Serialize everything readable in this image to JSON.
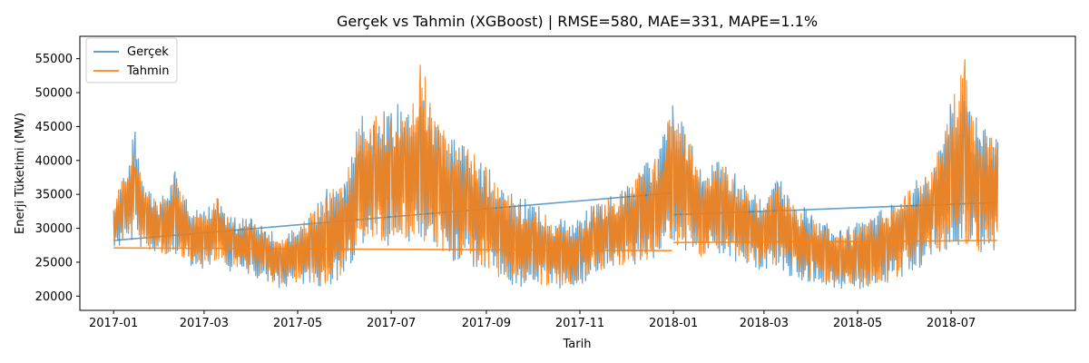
{
  "chart_data": {
    "type": "line",
    "title": "Gerçek vs Tahmin (XGBoost) | RMSE=580, MAE=331, MAPE=1.1%",
    "xlabel": "Tarih",
    "ylabel": "Enerji Tüketimi (MW)",
    "x_range": [
      "2016-12-10",
      "2018-09-20"
    ],
    "ylim": [
      17900,
      58300
    ],
    "x_ticks": [
      "2017-01",
      "2017-03",
      "2017-05",
      "2017-07",
      "2017-09",
      "2017-11",
      "2018-01",
      "2018-03",
      "2018-05",
      "2018-07"
    ],
    "y_ticks": [
      20000,
      25000,
      30000,
      35000,
      40000,
      45000,
      50000,
      55000
    ],
    "grid": false,
    "legend_position": "top-left",
    "series": [
      {
        "name": "Gerçek",
        "color": "#1f77b4",
        "x": [
          "2017-01-01",
          "2017-01-08",
          "2017-01-15",
          "2017-01-22",
          "2017-02-01",
          "2017-02-10",
          "2017-02-20",
          "2017-03-01",
          "2017-03-10",
          "2017-03-20",
          "2017-04-01",
          "2017-04-10",
          "2017-04-20",
          "2017-05-01",
          "2017-05-10",
          "2017-05-20",
          "2017-06-01",
          "2017-06-10",
          "2017-06-20",
          "2017-07-01",
          "2017-07-10",
          "2017-07-20",
          "2017-08-01",
          "2017-08-10",
          "2017-08-20",
          "2017-09-01",
          "2017-09-10",
          "2017-09-20",
          "2017-10-01",
          "2017-10-10",
          "2017-10-20",
          "2017-11-01",
          "2017-11-10",
          "2017-11-20",
          "2017-12-01",
          "2017-12-10",
          "2017-12-20",
          "2018-01-01",
          "2018-01-10",
          "2018-01-20",
          "2018-02-01",
          "2018-02-10",
          "2018-02-20",
          "2018-03-01",
          "2018-03-10",
          "2018-03-20",
          "2018-04-01",
          "2018-04-10",
          "2018-04-20",
          "2018-05-01",
          "2018-05-10",
          "2018-05-20",
          "2018-06-01",
          "2018-06-10",
          "2018-06-20",
          "2018-07-01",
          "2018-07-10",
          "2018-07-20",
          "2018-08-01"
        ],
        "y": [
          30000,
          33500,
          36000,
          31000,
          30000,
          32000,
          29000,
          28500,
          30500,
          27500,
          27500,
          26000,
          25000,
          26000,
          27000,
          27500,
          30000,
          36000,
          37500,
          38000,
          38500,
          39000,
          36000,
          34500,
          33500,
          31000,
          28500,
          27500,
          27500,
          26500,
          26000,
          26500,
          28500,
          29000,
          30000,
          31000,
          32000,
          38000,
          35500,
          32000,
          33000,
          31500,
          29500,
          29000,
          30500,
          28500,
          27000,
          26000,
          25000,
          25500,
          26500,
          27500,
          30000,
          31000,
          33000,
          37000,
          38000,
          35500,
          35000
        ],
        "y_hi": [
          34000,
          39000,
          44500,
          36000,
          34500,
          38500,
          33000,
          33000,
          35000,
          32000,
          31500,
          30000,
          29000,
          30500,
          33000,
          36000,
          38000,
          46500,
          47500,
          47500,
          50000,
          52000,
          46000,
          44500,
          43000,
          39500,
          36000,
          35000,
          34000,
          32500,
          31500,
          31500,
          34000,
          35000,
          36000,
          39000,
          41000,
          49000,
          44000,
          39000,
          40000,
          38500,
          35500,
          34500,
          37500,
          35000,
          32500,
          31000,
          30000,
          31000,
          32000,
          33500,
          36000,
          37500,
          40000,
          49000,
          50500,
          45000,
          44000
        ],
        "y_lo": [
          26000,
          28000,
          28000,
          26500,
          25500,
          26000,
          24500,
          23500,
          25000,
          23000,
          23000,
          22000,
          21000,
          21500,
          21500,
          21000,
          23000,
          26500,
          27000,
          27500,
          27500,
          28000,
          26000,
          25000,
          24500,
          23500,
          22000,
          21000,
          21500,
          21000,
          20500,
          21500,
          23000,
          23500,
          24000,
          24500,
          25000,
          27000,
          26500,
          25000,
          26000,
          25000,
          24000,
          23500,
          24000,
          22500,
          22000,
          21500,
          20500,
          21000,
          21000,
          21500,
          23000,
          24000,
          26000,
          26500,
          27000,
          26000,
          26000
        ],
        "gap_segments": [
          {
            "from": "2017-01-01",
            "to": "2017-12-31",
            "y_from": 28200,
            "y_to": 35200
          },
          {
            "from": "2018-01-01",
            "to": "2018-07-31",
            "y_from": 32000,
            "y_to": 33800
          }
        ]
      },
      {
        "name": "Tahmin",
        "color": "#ff7f0e",
        "x": [
          "2017-01-01",
          "2017-01-08",
          "2017-01-15",
          "2017-01-22",
          "2017-02-01",
          "2017-02-10",
          "2017-02-20",
          "2017-03-01",
          "2017-03-10",
          "2017-03-20",
          "2017-04-01",
          "2017-04-10",
          "2017-04-20",
          "2017-05-01",
          "2017-05-10",
          "2017-05-20",
          "2017-06-01",
          "2017-06-10",
          "2017-06-20",
          "2017-07-01",
          "2017-07-10",
          "2017-07-20",
          "2017-08-01",
          "2017-08-10",
          "2017-08-20",
          "2017-09-01",
          "2017-09-10",
          "2017-09-20",
          "2017-10-01",
          "2017-10-10",
          "2017-10-20",
          "2017-11-01",
          "2017-11-10",
          "2017-11-20",
          "2017-12-01",
          "2017-12-10",
          "2017-12-20",
          "2018-01-01",
          "2018-01-10",
          "2018-01-20",
          "2018-02-01",
          "2018-02-10",
          "2018-02-20",
          "2018-03-01",
          "2018-03-10",
          "2018-03-20",
          "2018-04-01",
          "2018-04-10",
          "2018-04-20",
          "2018-05-01",
          "2018-05-10",
          "2018-05-20",
          "2018-06-01",
          "2018-06-10",
          "2018-06-20",
          "2018-07-01",
          "2018-07-10",
          "2018-07-20",
          "2018-08-01"
        ],
        "y": [
          30000,
          33500,
          36000,
          31000,
          30000,
          32000,
          29000,
          28500,
          30500,
          27500,
          27500,
          26000,
          25000,
          26000,
          27000,
          27500,
          30000,
          36000,
          37500,
          38000,
          38500,
          39000,
          36000,
          34500,
          33500,
          31000,
          28500,
          27500,
          27500,
          26500,
          26000,
          26500,
          28500,
          29000,
          30000,
          31000,
          32000,
          38000,
          35500,
          32000,
          33000,
          31500,
          29500,
          29000,
          30500,
          28500,
          27000,
          26000,
          25000,
          25500,
          26500,
          27500,
          30000,
          31000,
          33000,
          37000,
          38000,
          35500,
          35000
        ],
        "y_hi": [
          33500,
          38500,
          44000,
          35500,
          34000,
          38000,
          32500,
          32500,
          34500,
          31500,
          31000,
          29500,
          28500,
          30000,
          32500,
          35500,
          37500,
          46000,
          47000,
          47000,
          49500,
          55500,
          45500,
          44000,
          42500,
          39000,
          35500,
          34500,
          33500,
          32000,
          31000,
          31000,
          33500,
          34500,
          35500,
          38500,
          40500,
          48500,
          43500,
          38500,
          39500,
          38000,
          35000,
          34000,
          37000,
          34500,
          32000,
          30500,
          29500,
          30500,
          31500,
          33000,
          35500,
          37000,
          39500,
          48500,
          55500,
          44500,
          43500
        ],
        "y_lo": [
          26500,
          28500,
          28500,
          27000,
          26000,
          26500,
          25000,
          24000,
          25500,
          23500,
          23500,
          22500,
          21500,
          22000,
          22000,
          21500,
          23500,
          27000,
          27500,
          28000,
          28000,
          28500,
          26500,
          25500,
          25000,
          24000,
          22500,
          21500,
          22000,
          21500,
          21000,
          22000,
          23500,
          24000,
          24500,
          25000,
          25500,
          27500,
          27000,
          25500,
          26500,
          25500,
          24500,
          24000,
          24500,
          23000,
          22500,
          22000,
          21000,
          21500,
          21500,
          22000,
          23500,
          24500,
          26500,
          27000,
          27500,
          26500,
          26500
        ],
        "gap_segments": [
          {
            "from": "2017-01-01",
            "to": "2017-12-31",
            "y_from": 27100,
            "y_to": 26700
          },
          {
            "from": "2018-01-01",
            "to": "2018-07-31",
            "y_from": 27900,
            "y_to": 28200
          }
        ]
      }
    ]
  }
}
